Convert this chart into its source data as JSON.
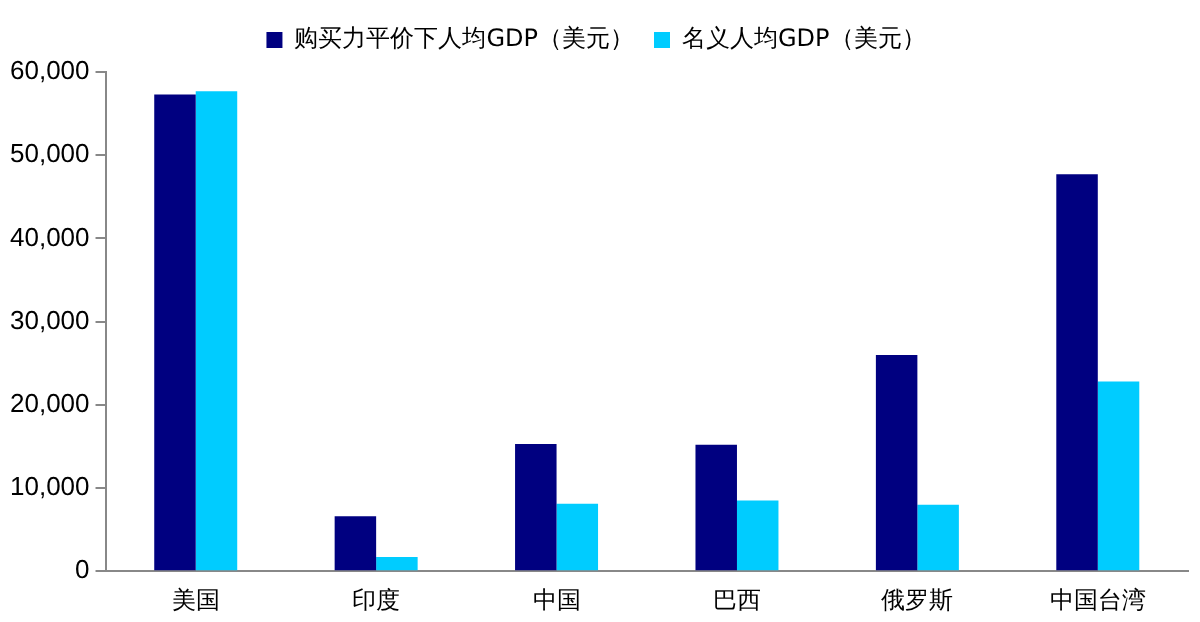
{
  "chart_data": {
    "type": "bar",
    "categories": [
      "美国",
      "印度",
      "中国",
      "巴西",
      "俄罗斯",
      "中国台湾"
    ],
    "series": [
      {
        "name": "购买力平价下人均GDP（美元）",
        "color": "#000080",
        "values": [
          57300,
          6600,
          15300,
          15200,
          26000,
          47700
        ]
      },
      {
        "name": "名义人均GDP（美元）",
        "color": "#00ccff",
        "values": [
          57700,
          1700,
          8100,
          8500,
          8000,
          22800
        ]
      }
    ],
    "ylim": [
      0,
      60000
    ],
    "yticks": [
      {
        "value": 0,
        "label": "0"
      },
      {
        "value": 10000,
        "label": "10,000"
      },
      {
        "value": 20000,
        "label": "20,000"
      },
      {
        "value": 30000,
        "label": "30,000"
      },
      {
        "value": 40000,
        "label": "40,000"
      },
      {
        "value": 50000,
        "label": "50,000"
      },
      {
        "value": 60000,
        "label": "60,000"
      }
    ],
    "grid": false,
    "legend": "top"
  }
}
